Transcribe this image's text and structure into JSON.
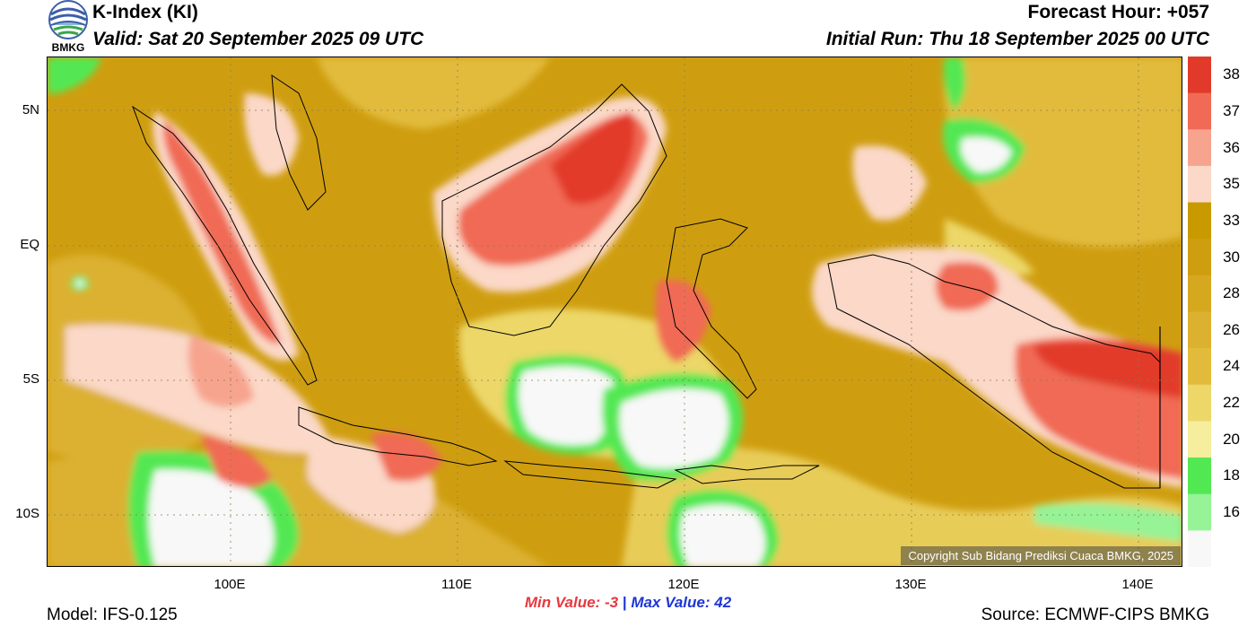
{
  "header": {
    "title": "K-Index (KI)",
    "valid": "Valid: Sat 20 September 2025 09 UTC",
    "forecast_hour": "Forecast Hour: +057",
    "initial_run": "Initial Run: Thu 18 September 2025 00 UTC"
  },
  "logo": {
    "text": "BMKG",
    "icon": "bmkg-logo-icon"
  },
  "map": {
    "lat_labels": [
      "5N",
      "EQ",
      "5S",
      "10S"
    ],
    "lon_labels": [
      "100E",
      "110E",
      "120E",
      "130E",
      "140E"
    ],
    "copyright": "Copyright Sub Bidang Prediksi Cuaca BMKG, 2025"
  },
  "colorbar": {
    "ticks": [
      "38",
      "37",
      "36",
      "35",
      "33",
      "30",
      "28",
      "26",
      "24",
      "22",
      "20",
      "18",
      "16"
    ],
    "colors": [
      "#e23a2a",
      "#f06a55",
      "#f7a48f",
      "#fbd8c8",
      "#c89a00",
      "#cf9e10",
      "#d6a820",
      "#dcb130",
      "#e2bb3c",
      "#ecd768",
      "#f5ee9c",
      "#52e852",
      "#96f396",
      "#f8f8f8"
    ]
  },
  "stats": {
    "min_label": "Min Value:",
    "min_value": "-3",
    "separator": "|",
    "max_label": "Max Value:",
    "max_value": "42"
  },
  "footer": {
    "model": "Model: IFS-0.125",
    "source": "Source: ECMWF-CIPS BMKG"
  }
}
